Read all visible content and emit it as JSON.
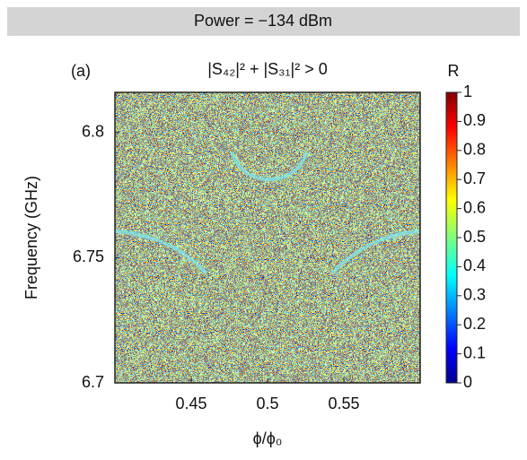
{
  "chart_data": {
    "type": "heatmap",
    "title": "Power =  −134 dBm",
    "subtitle": "|S₄₂|² + |S₃₁|² > 0",
    "panel_label": "(a)",
    "x_label": "ϕ/ϕ₀",
    "y_label": "Frequency (GHz)",
    "xlim": [
      0.4,
      0.6
    ],
    "xticks": [
      0.45,
      0.5,
      0.55
    ],
    "ylim": [
      6.7,
      6.816
    ],
    "yticks": [
      6.7,
      6.75,
      6.8
    ],
    "colormap": "jet",
    "colorbar": {
      "label": "R",
      "lim": [
        0,
        1
      ],
      "ticks": [
        0,
        0.1,
        0.2,
        0.3,
        0.4,
        0.5,
        0.6,
        0.7,
        0.8,
        0.9,
        1
      ]
    }
  }
}
